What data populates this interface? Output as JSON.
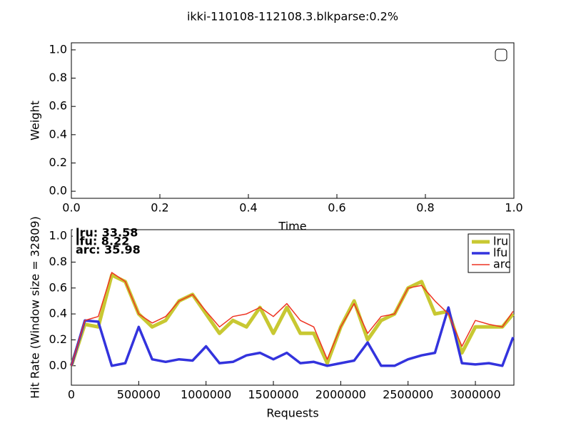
{
  "chart_data": [
    {
      "type": "line",
      "title": "ikki-110108-112108.3.blkparse:0.2%",
      "xlabel": "Time",
      "ylabel": "Weight",
      "xlim": [
        0,
        1
      ],
      "ylim": [
        -0.05,
        1.05
      ],
      "xticks": [
        {
          "value": 0,
          "label": "0.0"
        },
        {
          "value": 0.2,
          "label": "0.2"
        },
        {
          "value": 0.4,
          "label": "0.4"
        },
        {
          "value": 0.6,
          "label": "0.6"
        },
        {
          "value": 0.8,
          "label": "0.8"
        },
        {
          "value": 1,
          "label": "1.0"
        }
      ],
      "yticks": [
        {
          "value": 0,
          "label": "0.0"
        },
        {
          "value": 0.2,
          "label": "0.2"
        },
        {
          "value": 0.4,
          "label": "0.4"
        },
        {
          "value": 0.6,
          "label": "0.6"
        },
        {
          "value": 0.8,
          "label": "0.8"
        },
        {
          "value": 1,
          "label": "1.0"
        }
      ],
      "legend": "upper right",
      "series": []
    },
    {
      "type": "line",
      "xlabel": "Requests",
      "ylabel": "Hit Rate (Window size = 32809)",
      "annotations": [
        "lru:  33.58",
        "lfu:  8.22",
        "arc:  35.98"
      ],
      "xlim": [
        0,
        3286000
      ],
      "ylim": [
        -0.15,
        1.05
      ],
      "xticks": [
        0,
        500000,
        1000000,
        1500000,
        2000000,
        2500000,
        3000000
      ],
      "yticks": [
        {
          "value": 0,
          "label": "0.0"
        },
        {
          "value": 0.2,
          "label": "0.2"
        },
        {
          "value": 0.4,
          "label": "0.4"
        },
        {
          "value": 0.6,
          "label": "0.6"
        },
        {
          "value": 0.8,
          "label": "0.8"
        },
        {
          "value": 1,
          "label": "1.0"
        }
      ],
      "legend": "upper right",
      "x": [
        0,
        100000,
        200000,
        300000,
        400000,
        500000,
        600000,
        700000,
        800000,
        900000,
        1000000,
        1100000,
        1200000,
        1300000,
        1400000,
        1500000,
        1600000,
        1700000,
        1800000,
        1900000,
        2000000,
        2100000,
        2200000,
        2300000,
        2400000,
        2500000,
        2600000,
        2700000,
        2800000,
        2900000,
        3000000,
        3100000,
        3200000,
        3280000
      ],
      "series": [
        {
          "name": "lru",
          "color": "#c8c832",
          "values": [
            0.0,
            0.32,
            0.3,
            0.7,
            0.65,
            0.4,
            0.3,
            0.35,
            0.5,
            0.55,
            0.4,
            0.25,
            0.35,
            0.3,
            0.45,
            0.25,
            0.45,
            0.25,
            0.25,
            0.02,
            0.3,
            0.5,
            0.2,
            0.35,
            0.4,
            0.6,
            0.65,
            0.4,
            0.42,
            0.1,
            0.3,
            0.3,
            0.3,
            0.4
          ]
        },
        {
          "name": "lfu",
          "color": "#3333dd",
          "values": [
            0.0,
            0.35,
            0.34,
            0.0,
            0.02,
            0.3,
            0.05,
            0.03,
            0.05,
            0.04,
            0.15,
            0.02,
            0.03,
            0.08,
            0.1,
            0.05,
            0.1,
            0.02,
            0.03,
            0.0,
            0.02,
            0.04,
            0.18,
            0.0,
            0.0,
            0.05,
            0.08,
            0.1,
            0.45,
            0.02,
            0.01,
            0.02,
            0.0,
            0.22
          ]
        },
        {
          "name": "arc",
          "color": "#ee3322",
          "values": [
            0.0,
            0.35,
            0.38,
            0.72,
            0.65,
            0.4,
            0.33,
            0.38,
            0.5,
            0.55,
            0.42,
            0.3,
            0.38,
            0.4,
            0.45,
            0.38,
            0.48,
            0.35,
            0.3,
            0.05,
            0.3,
            0.48,
            0.25,
            0.38,
            0.4,
            0.6,
            0.62,
            0.5,
            0.4,
            0.15,
            0.35,
            0.32,
            0.3,
            0.42
          ]
        }
      ]
    }
  ]
}
